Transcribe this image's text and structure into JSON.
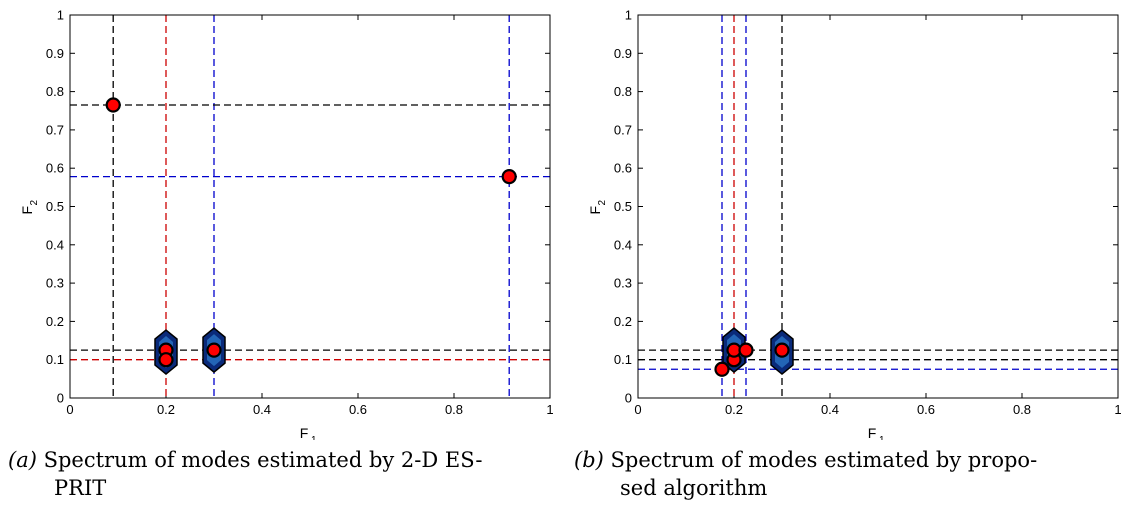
{
  "chart_data": [
    {
      "type": "scatter",
      "xlabel": "F",
      "xlabel_sub": "1",
      "ylabel": "F",
      "ylabel_sub": "2",
      "xlim": [
        0,
        1
      ],
      "ylim": [
        0,
        1
      ],
      "xticks": [
        "0",
        "0.2",
        "0.4",
        "0.6",
        "0.8",
        "1"
      ],
      "yticks": [
        "0",
        "0.1",
        "0.2",
        "0.3",
        "0.4",
        "0.5",
        "0.6",
        "0.7",
        "0.8",
        "0.9",
        "1"
      ],
      "points": [
        {
          "x": 0.09,
          "y": 0.765
        },
        {
          "x": 0.915,
          "y": 0.578
        },
        {
          "x": 0.2,
          "y": 0.125
        },
        {
          "x": 0.2,
          "y": 0.1
        },
        {
          "x": 0.3,
          "y": 0.125
        }
      ],
      "blobs": [
        {
          "x": 0.2,
          "y": 0.12
        },
        {
          "x": 0.3,
          "y": 0.125
        }
      ],
      "vlines": [
        {
          "x": 0.09,
          "color": "#000000"
        },
        {
          "x": 0.2,
          "color": "#cc0000"
        },
        {
          "x": 0.3,
          "color": "#0000cc"
        },
        {
          "x": 0.915,
          "color": "#0000cc"
        }
      ],
      "hlines": [
        {
          "y": 0.765,
          "color": "#000000"
        },
        {
          "y": 0.578,
          "color": "#0000cc"
        },
        {
          "y": 0.125,
          "color": "#000000"
        },
        {
          "y": 0.1,
          "color": "#cc0000"
        }
      ]
    },
    {
      "type": "scatter",
      "xlabel": "F",
      "xlabel_sub": "1",
      "ylabel": "F",
      "ylabel_sub": "2",
      "xlim": [
        0,
        1
      ],
      "ylim": [
        0,
        1
      ],
      "xticks": [
        "0",
        "0.2",
        "0.4",
        "0.6",
        "0.8",
        "1"
      ],
      "yticks": [
        "0",
        "0.1",
        "0.2",
        "0.3",
        "0.4",
        "0.5",
        "0.6",
        "0.7",
        "0.8",
        "0.9",
        "1"
      ],
      "points": [
        {
          "x": 0.175,
          "y": 0.075
        },
        {
          "x": 0.2,
          "y": 0.1
        },
        {
          "x": 0.2,
          "y": 0.125
        },
        {
          "x": 0.225,
          "y": 0.125
        },
        {
          "x": 0.3,
          "y": 0.125
        }
      ],
      "blobs": [
        {
          "x": 0.2,
          "y": 0.125
        },
        {
          "x": 0.3,
          "y": 0.12
        }
      ],
      "vlines": [
        {
          "x": 0.175,
          "color": "#0000cc"
        },
        {
          "x": 0.2,
          "color": "#cc0000"
        },
        {
          "x": 0.225,
          "color": "#0000cc"
        },
        {
          "x": 0.3,
          "color": "#000000"
        }
      ],
      "hlines": [
        {
          "y": 0.125,
          "color": "#000000"
        },
        {
          "y": 0.1,
          "color": "#000000"
        },
        {
          "y": 0.075,
          "color": "#0000cc"
        }
      ]
    }
  ],
  "captions": {
    "a": {
      "label": "(a)",
      "line1": " Spectrum of modes estimated by 2-D ES-",
      "line2": "PRIT"
    },
    "b": {
      "label": "(b)",
      "line1": " Spectrum of modes estimated by propo-",
      "line2": "sed algorithm"
    }
  },
  "colors": {
    "marker_fill": "#ff0000",
    "blob_fill": "#0a2a7a",
    "blob_inner": "#2d7fd0"
  }
}
